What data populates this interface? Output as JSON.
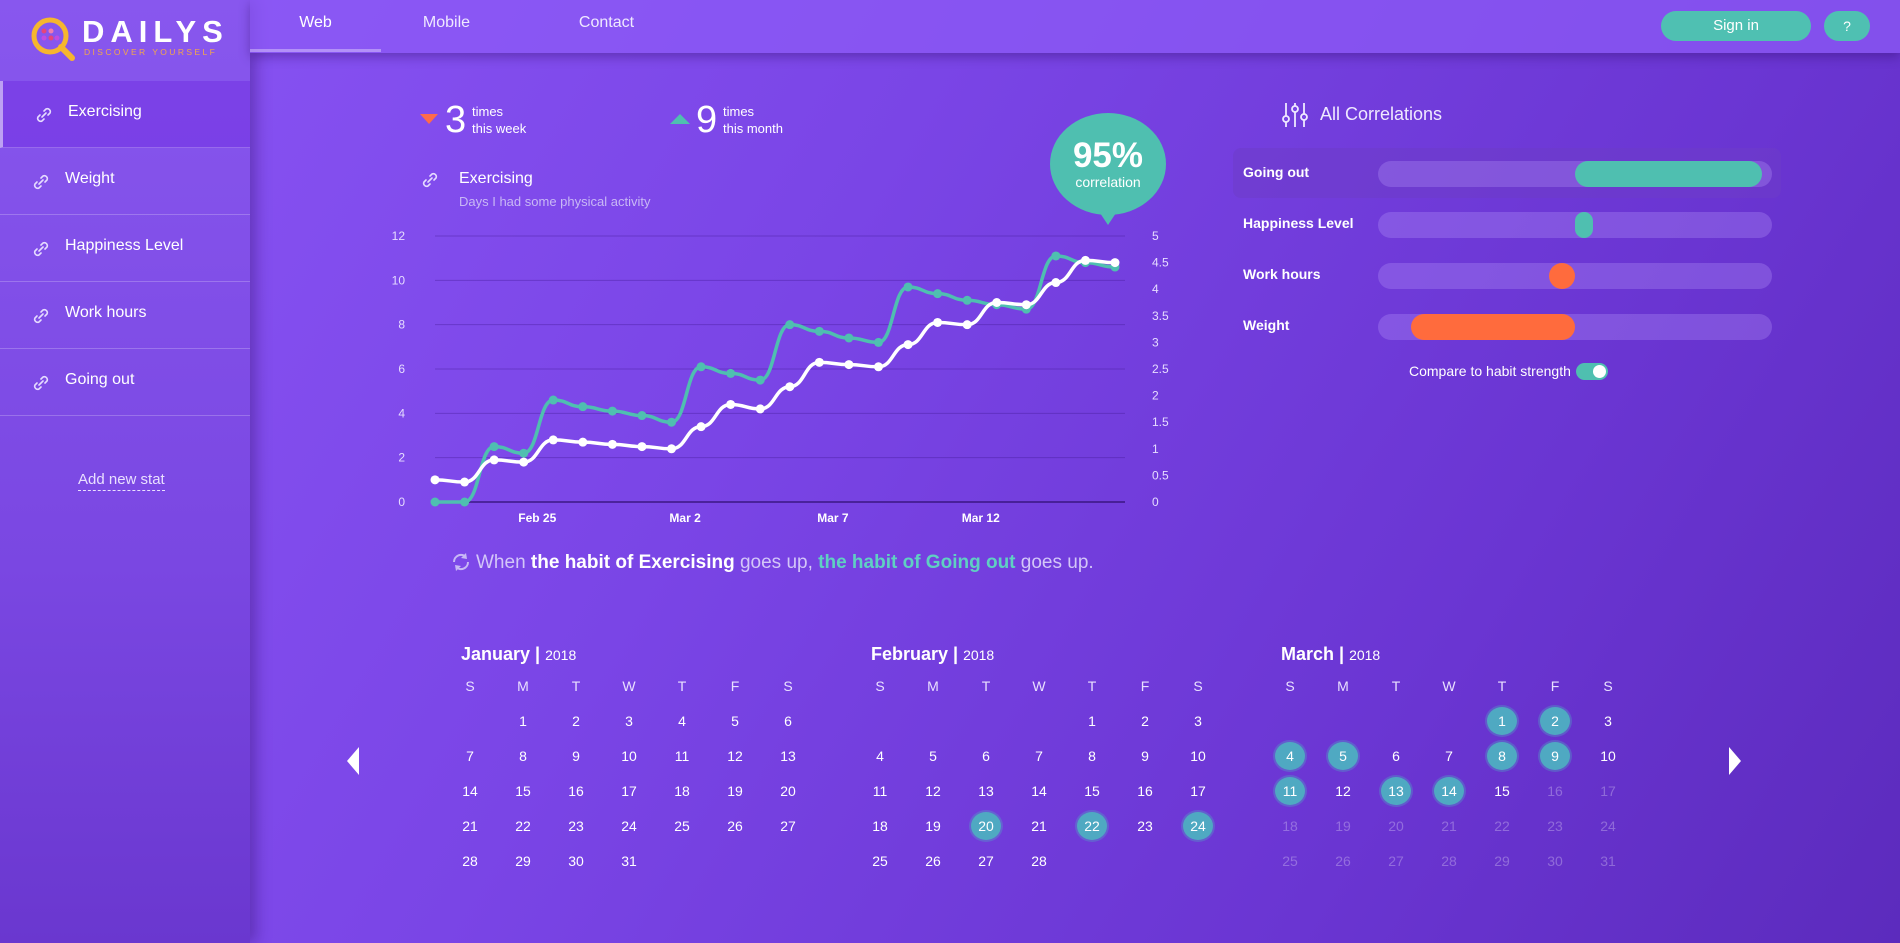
{
  "brand": {
    "name": "DAILYS",
    "tagline": "DISCOVER YOURSELF"
  },
  "nav": {
    "tabs": [
      "Web",
      "Mobile",
      "Contact"
    ],
    "active": "Web",
    "signin": "Sign in",
    "help": "?"
  },
  "sidebar": {
    "items": [
      {
        "label": "Exercising",
        "active": true
      },
      {
        "label": "Weight"
      },
      {
        "label": "Happiness Level"
      },
      {
        "label": "Work hours"
      },
      {
        "label": "Going out"
      }
    ],
    "add_link": "Add new stat"
  },
  "stats": {
    "week": {
      "value": "3",
      "unit": "times",
      "period": "this week"
    },
    "month": {
      "value": "9",
      "unit": "times",
      "period": "this month"
    }
  },
  "correlation": {
    "value": "95%",
    "label": "correlation"
  },
  "habit": {
    "title": "Exercising",
    "subtitle": "Days I had some physical activity"
  },
  "chart_data": {
    "type": "line",
    "x_ticks": [
      "Feb 25",
      "Mar 2",
      "Mar 7",
      "Mar 12"
    ],
    "y_left": {
      "ticks": [
        "0",
        "2",
        "4",
        "6",
        "8",
        "10",
        "12"
      ],
      "range": [
        0,
        12
      ]
    },
    "y_right": {
      "ticks": [
        "0",
        "0.5",
        "1",
        "1.5",
        "2",
        "2.5",
        "3",
        "3.5",
        "4",
        "4.5",
        "5"
      ],
      "range": [
        0,
        5
      ]
    },
    "grid": true,
    "series": [
      {
        "color": "#ffffff",
        "axis": "left",
        "values": [
          1,
          0.9,
          1.9,
          1.8,
          2.8,
          2.7,
          2.6,
          2.5,
          2.4,
          3.4,
          4.4,
          4.2,
          5.2,
          6.3,
          6.2,
          6.1,
          7.1,
          8.1,
          8.0,
          9.0,
          8.9,
          9.9,
          10.9,
          10.8
        ]
      },
      {
        "color": "#4fbfb0",
        "axis": "left",
        "values": [
          0,
          0,
          2.5,
          2.2,
          4.6,
          4.3,
          4.1,
          3.9,
          3.6,
          6.1,
          5.8,
          5.5,
          8.0,
          7.7,
          7.4,
          7.2,
          9.7,
          9.4,
          9.1,
          8.9,
          8.7,
          11.1,
          10.8,
          10.6
        ]
      }
    ]
  },
  "summary": {
    "p1": "When",
    "h1": "the habit of Exercising",
    "p2": "goes up,",
    "h2": "the habit of Going out",
    "p3": "goes up."
  },
  "correlations": {
    "title": "All Correlations",
    "rows": [
      {
        "name": "Going out",
        "start": 0.5,
        "end": 0.975,
        "color": "#4fbfb0",
        "active": true
      },
      {
        "name": "Happiness Level",
        "start": 0.5,
        "end": 0.545,
        "color": "#4fbfb0"
      },
      {
        "name": "Work hours",
        "start": 0.435,
        "end": 0.5,
        "color": "#ff6b3d"
      },
      {
        "name": "Weight",
        "start": 0.085,
        "end": 0.5,
        "color": "#ff6b3d"
      }
    ],
    "compare_label": "Compare to habit strength",
    "compare_on": true
  },
  "calendar": {
    "weekdays": [
      "S",
      "M",
      "T",
      "W",
      "T",
      "F",
      "S"
    ],
    "months": [
      {
        "name": "January",
        "year": "2018",
        "start_dow": 1,
        "days": 31,
        "hits": [],
        "future_from": 99
      },
      {
        "name": "February",
        "year": "2018",
        "start_dow": 4,
        "days": 28,
        "hits": [
          20,
          22,
          24
        ],
        "future_from": 99
      },
      {
        "name": "March",
        "year": "2018",
        "start_dow": 4,
        "days": 31,
        "hits": [
          1,
          2,
          4,
          5,
          8,
          9,
          11,
          13,
          14
        ],
        "future_from": 16
      }
    ]
  }
}
